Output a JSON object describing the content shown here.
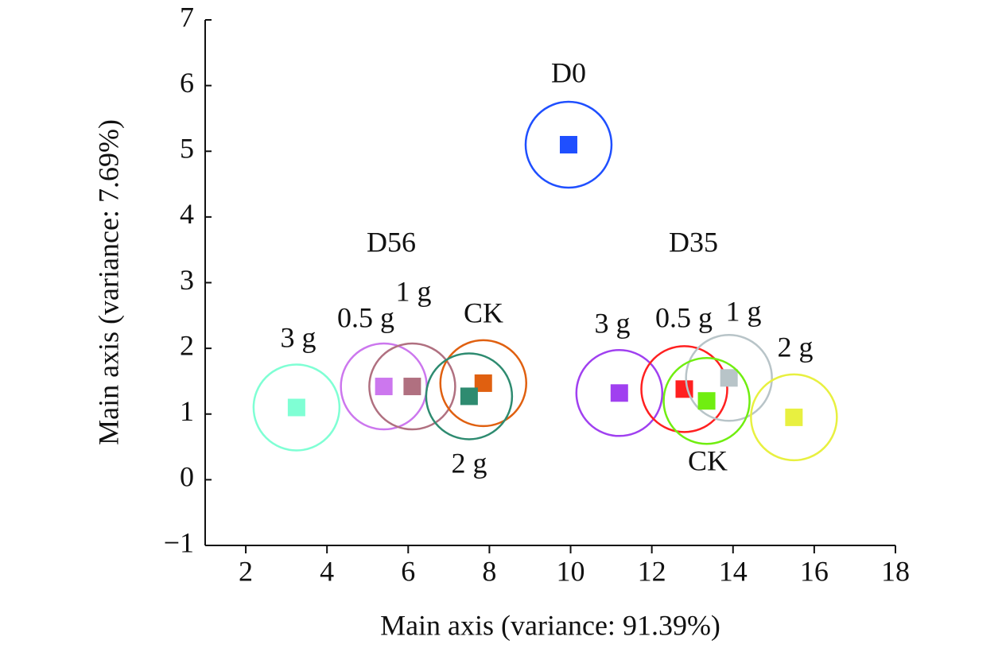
{
  "chart_data": {
    "type": "scatter",
    "xlabel": "Main axis (variance: 91.39%)",
    "ylabel": "Main axis (variance: 7.69%)",
    "xlim": [
      1,
      18
    ],
    "xticks": [
      2,
      4,
      6,
      8,
      10,
      12,
      14,
      16,
      18
    ],
    "ylim": [
      -1,
      7
    ],
    "yticks": [
      {
        "value": -1,
        "label": "−1"
      },
      0,
      1,
      2,
      3,
      4,
      5,
      6,
      7
    ],
    "groups": [
      {
        "name": "D0",
        "points": [
          {
            "x": 9.95,
            "y": 5.1,
            "color": "#1f4fff"
          }
        ]
      },
      {
        "name": "D56",
        "points": [
          {
            "label": "3 g",
            "x": 3.25,
            "y": 1.1,
            "color": "#7fffd4"
          },
          {
            "label": "0.5 g",
            "x": 5.4,
            "y": 1.42,
            "color": "#cc77ee"
          },
          {
            "label": "1 g",
            "x": 6.1,
            "y": 1.42,
            "color": "#b07080"
          },
          {
            "label": "CK",
            "x": 7.85,
            "y": 1.47,
            "color": "#e06010"
          },
          {
            "label": "2 g",
            "x": 7.5,
            "y": 1.27,
            "color": "#2e8b70"
          }
        ]
      },
      {
        "name": "D35",
        "points": [
          {
            "label": "3 g",
            "x": 11.2,
            "y": 1.32,
            "color": "#a040f0"
          },
          {
            "label": "0.5 g",
            "x": 12.8,
            "y": 1.38,
            "color": "#ff2020"
          },
          {
            "label": "1 g",
            "x": 13.9,
            "y": 1.55,
            "color": "#b8c4c8"
          },
          {
            "label": "2 g",
            "x": 15.5,
            "y": 0.95,
            "color": "#e8f040"
          },
          {
            "label": "CK",
            "x": 13.35,
            "y": 1.2,
            "color": "#70ee10"
          }
        ]
      }
    ]
  }
}
